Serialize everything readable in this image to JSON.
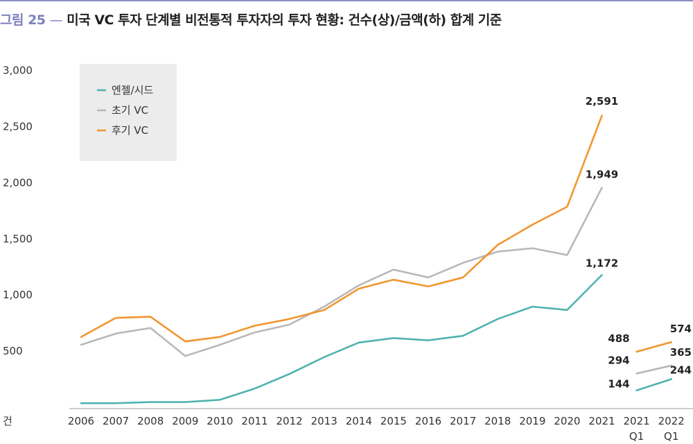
{
  "title": {
    "figure": "그림 25",
    "dash": "—",
    "text": "미국 VC 투자 단계별 비전통적 투자자의 투자 현황: 건수(상)/금액(하) 합계 기준"
  },
  "chart_data": {
    "type": "line",
    "ylabel": "건",
    "ylim": [
      0,
      3000
    ],
    "yticks": [
      500,
      1000,
      1500,
      2000,
      2500,
      3000
    ],
    "ytick_labels": [
      "500",
      "1,000",
      "1,500",
      "2,000",
      "2,500",
      "3,000"
    ],
    "categories": [
      "2006",
      "2007",
      "2008",
      "2009",
      "2010",
      "2011",
      "2012",
      "2013",
      "2014",
      "2015",
      "2016",
      "2017",
      "2018",
      "2019",
      "2020",
      "2021",
      "2021\nQ1",
      "2022\nQ1"
    ],
    "legend_position": "top-left",
    "grid": false,
    "series": [
      {
        "name": "엔젤/시드",
        "color": "#4fb3b0",
        "annual": [
          30,
          30,
          40,
          40,
          60,
          160,
          290,
          440,
          570,
          610,
          590,
          630,
          780,
          890,
          860,
          1172
        ],
        "quarterly": [
          144,
          244
        ]
      },
      {
        "name": "초기 VC",
        "color": "#b8b8b8",
        "annual": [
          550,
          650,
          700,
          450,
          550,
          660,
          730,
          890,
          1080,
          1220,
          1150,
          1280,
          1380,
          1410,
          1350,
          1949
        ],
        "quarterly": [
          294,
          365
        ]
      },
      {
        "name": "후기 VC",
        "color": "#f0962e",
        "annual": [
          620,
          790,
          800,
          580,
          620,
          720,
          780,
          860,
          1050,
          1130,
          1070,
          1150,
          1440,
          1620,
          1780,
          2591
        ],
        "quarterly": [
          488,
          574
        ]
      }
    ],
    "annotations": [
      {
        "text": "2,591",
        "series": "후기 VC",
        "x": "2021"
      },
      {
        "text": "1,949",
        "series": "초기 VC",
        "x": "2021"
      },
      {
        "text": "1,172",
        "series": "엔젤/시드",
        "x": "2021"
      },
      {
        "text": "488",
        "series": "후기 VC",
        "x": "2021\nQ1"
      },
      {
        "text": "294",
        "series": "초기 VC",
        "x": "2021\nQ1"
      },
      {
        "text": "144",
        "series": "엔젤/시드",
        "x": "2021\nQ1"
      },
      {
        "text": "574",
        "series": "후기 VC",
        "x": "2022\nQ1"
      },
      {
        "text": "365",
        "series": "초기 VC",
        "x": "2022\nQ1"
      },
      {
        "text": "244",
        "series": "엔젤/시드",
        "x": "2022\nQ1"
      }
    ]
  }
}
